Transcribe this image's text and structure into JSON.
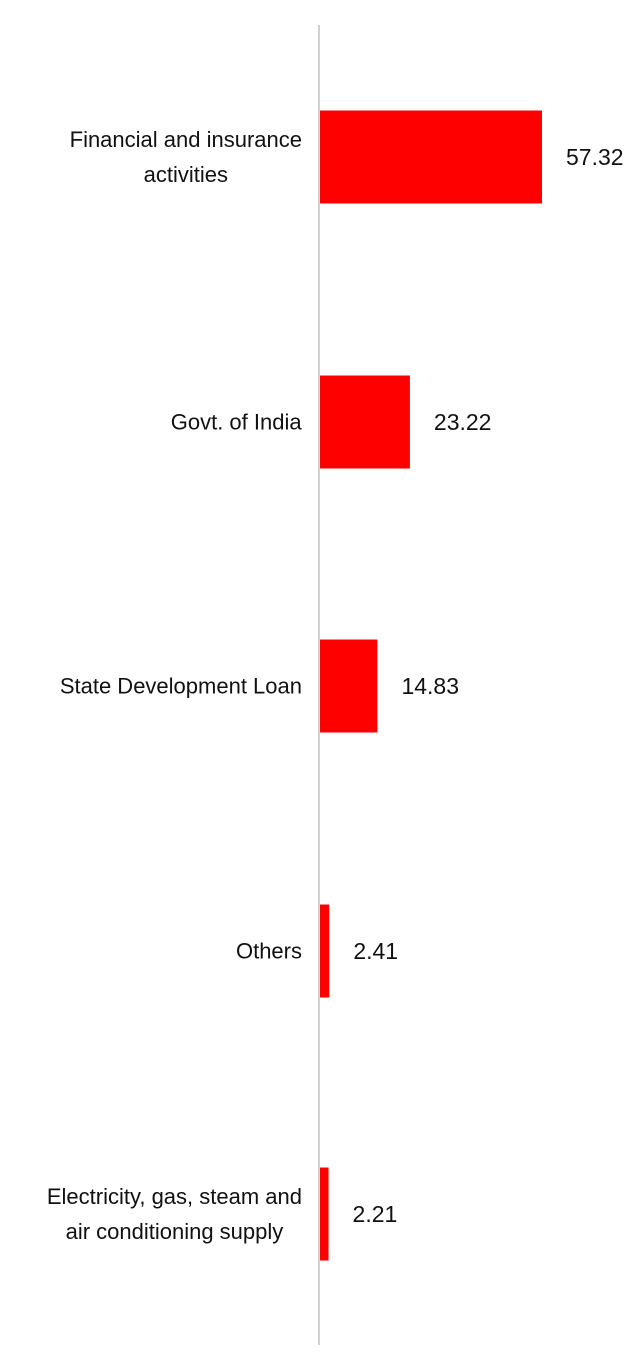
{
  "chart_data": {
    "type": "bar",
    "orientation": "horizontal",
    "categories": [
      [
        "Financial and insurance",
        "activities"
      ],
      [
        "Govt. of India"
      ],
      [
        "State Development Loan"
      ],
      [
        "Others"
      ],
      [
        "Electricity, gas, steam and",
        "air conditioning supply"
      ]
    ],
    "values": [
      57.32,
      23.22,
      14.83,
      2.41,
      2.21
    ],
    "value_labels": [
      "57.32",
      "23.22",
      "14.83",
      "2.41",
      "2.21"
    ],
    "bar_color": "#ff0000",
    "axis_color": "#d0d0d0",
    "title": "",
    "xlabel": "",
    "ylabel": "",
    "grid": false,
    "legend": false
  }
}
